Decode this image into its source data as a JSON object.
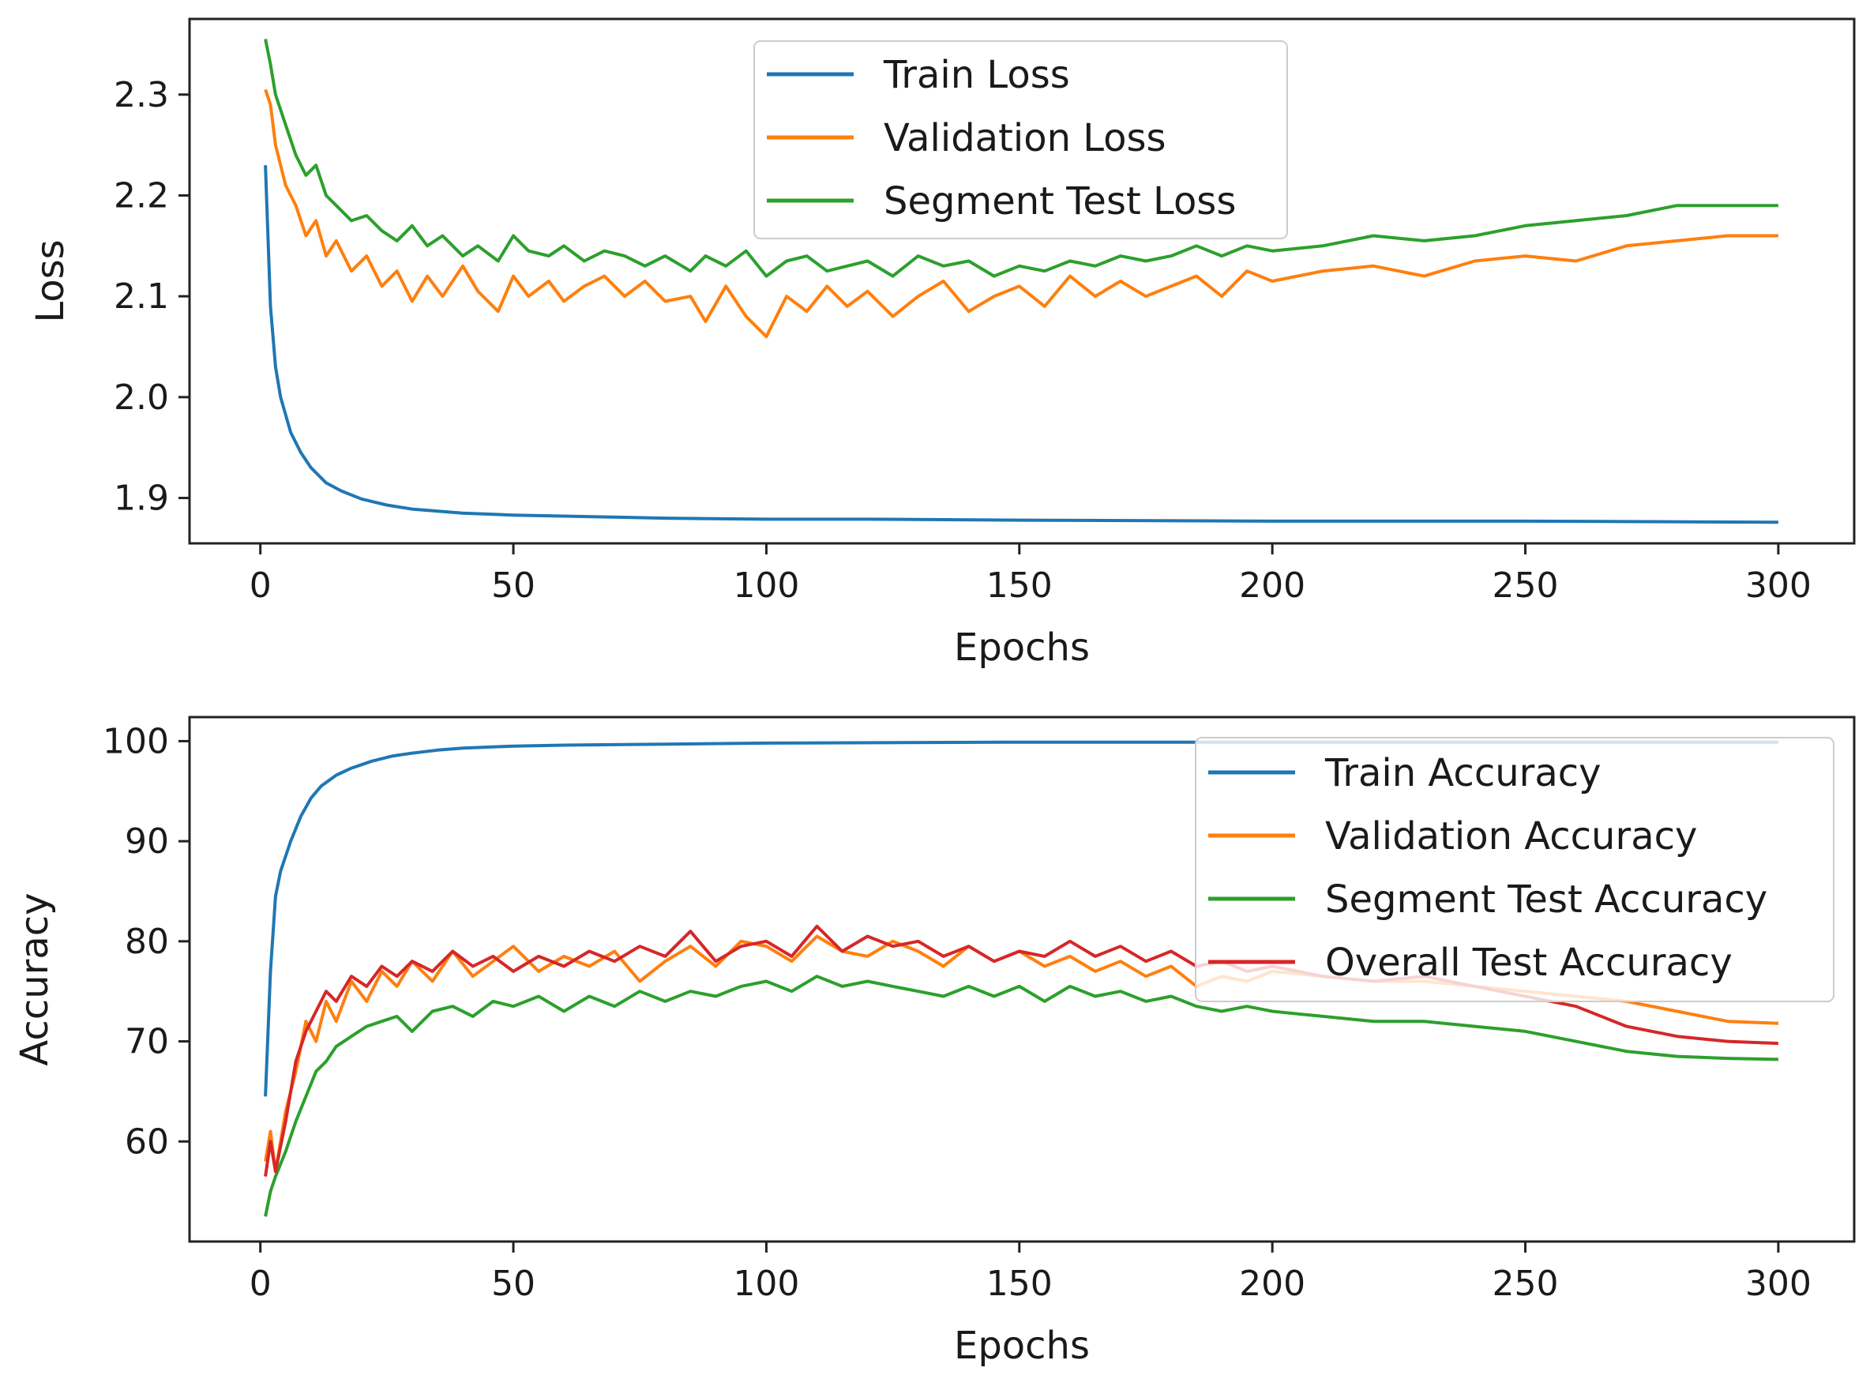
{
  "chart_data": [
    {
      "type": "line",
      "title": "",
      "xlabel": "Epochs",
      "ylabel": "Loss",
      "xlim": [
        -14,
        315
      ],
      "ylim": [
        1.855,
        2.375
      ],
      "xticks": [
        0,
        50,
        100,
        150,
        200,
        250,
        300
      ],
      "xtick_labels": [
        "0",
        "50",
        "100",
        "150",
        "200",
        "250",
        "300"
      ],
      "yticks": [
        1.9,
        2.0,
        2.1,
        2.2,
        2.3
      ],
      "ytick_labels": [
        "1.9",
        "2.0",
        "2.1",
        "2.2",
        "2.3"
      ],
      "legend_position": "upper-center",
      "series": [
        {
          "name": "Train Loss",
          "color": "#1f77b4",
          "x": [
            1,
            2,
            3,
            4,
            6,
            8,
            10,
            13,
            16,
            20,
            25,
            30,
            40,
            50,
            60,
            70,
            80,
            100,
            120,
            150,
            200,
            250,
            300
          ],
          "values": [
            2.23,
            2.09,
            2.03,
            2.0,
            1.965,
            1.945,
            1.93,
            1.915,
            1.907,
            1.899,
            1.893,
            1.889,
            1.885,
            1.883,
            1.882,
            1.881,
            1.88,
            1.879,
            1.879,
            1.878,
            1.877,
            1.877,
            1.876
          ]
        },
        {
          "name": "Validation Loss",
          "color": "#ff7f0e",
          "x": [
            1,
            2,
            3,
            5,
            7,
            9,
            11,
            13,
            15,
            18,
            21,
            24,
            27,
            30,
            33,
            36,
            40,
            43,
            47,
            50,
            53,
            57,
            60,
            64,
            68,
            72,
            76,
            80,
            85,
            88,
            92,
            96,
            100,
            104,
            108,
            112,
            116,
            120,
            125,
            130,
            135,
            140,
            145,
            150,
            155,
            160,
            165,
            170,
            175,
            180,
            185,
            190,
            195,
            200,
            210,
            220,
            230,
            240,
            250,
            260,
            270,
            280,
            290,
            300
          ],
          "values": [
            2.305,
            2.29,
            2.25,
            2.21,
            2.19,
            2.16,
            2.175,
            2.14,
            2.155,
            2.125,
            2.14,
            2.11,
            2.125,
            2.095,
            2.12,
            2.1,
            2.13,
            2.105,
            2.085,
            2.12,
            2.1,
            2.115,
            2.095,
            2.11,
            2.12,
            2.1,
            2.115,
            2.095,
            2.1,
            2.075,
            2.11,
            2.08,
            2.06,
            2.1,
            2.085,
            2.11,
            2.09,
            2.105,
            2.08,
            2.1,
            2.115,
            2.085,
            2.1,
            2.11,
            2.09,
            2.12,
            2.1,
            2.115,
            2.1,
            2.11,
            2.12,
            2.1,
            2.125,
            2.115,
            2.125,
            2.13,
            2.12,
            2.135,
            2.14,
            2.135,
            2.15,
            2.155,
            2.16,
            2.16
          ]
        },
        {
          "name": "Segment Test Loss",
          "color": "#2ca02c",
          "x": [
            1,
            2,
            3,
            5,
            7,
            9,
            11,
            13,
            15,
            18,
            21,
            24,
            27,
            30,
            33,
            36,
            40,
            43,
            47,
            50,
            53,
            57,
            60,
            64,
            68,
            72,
            76,
            80,
            85,
            88,
            92,
            96,
            100,
            104,
            108,
            112,
            116,
            120,
            125,
            130,
            135,
            140,
            145,
            150,
            155,
            160,
            165,
            170,
            175,
            180,
            185,
            190,
            195,
            200,
            210,
            220,
            230,
            240,
            250,
            260,
            270,
            280,
            290,
            300
          ],
          "values": [
            2.355,
            2.33,
            2.3,
            2.27,
            2.24,
            2.22,
            2.23,
            2.2,
            2.19,
            2.175,
            2.18,
            2.165,
            2.155,
            2.17,
            2.15,
            2.16,
            2.14,
            2.15,
            2.135,
            2.16,
            2.145,
            2.14,
            2.15,
            2.135,
            2.145,
            2.14,
            2.13,
            2.14,
            2.125,
            2.14,
            2.13,
            2.145,
            2.12,
            2.135,
            2.14,
            2.125,
            2.13,
            2.135,
            2.12,
            2.14,
            2.13,
            2.135,
            2.12,
            2.13,
            2.125,
            2.135,
            2.13,
            2.14,
            2.135,
            2.14,
            2.15,
            2.14,
            2.15,
            2.145,
            2.15,
            2.16,
            2.155,
            2.16,
            2.17,
            2.175,
            2.18,
            2.19,
            2.19,
            2.19
          ]
        }
      ]
    },
    {
      "type": "line",
      "title": "",
      "xlabel": "Epochs",
      "ylabel": "Accuracy",
      "xlim": [
        -14,
        315
      ],
      "ylim": [
        50,
        102.4
      ],
      "xticks": [
        0,
        50,
        100,
        150,
        200,
        250,
        300
      ],
      "xtick_labels": [
        "0",
        "50",
        "100",
        "150",
        "200",
        "250",
        "300"
      ],
      "yticks": [
        60,
        70,
        80,
        90,
        100
      ],
      "ytick_labels": [
        "60",
        "70",
        "80",
        "90",
        "100"
      ],
      "legend_position": "upper-right",
      "series": [
        {
          "name": "Train Accuracy",
          "color": "#1f77b4",
          "x": [
            1,
            2,
            3,
            4,
            6,
            8,
            10,
            12,
            15,
            18,
            22,
            26,
            30,
            35,
            40,
            50,
            60,
            80,
            100,
            150,
            200,
            250,
            300
          ],
          "values": [
            64.5,
            77.0,
            84.5,
            87.0,
            90.0,
            92.5,
            94.3,
            95.5,
            96.6,
            97.3,
            98.0,
            98.5,
            98.8,
            99.1,
            99.3,
            99.5,
            99.6,
            99.7,
            99.8,
            99.9,
            99.9,
            99.9,
            99.9
          ]
        },
        {
          "name": "Validation Accuracy",
          "color": "#ff7f0e",
          "x": [
            1,
            2,
            3,
            5,
            7,
            9,
            11,
            13,
            15,
            18,
            21,
            24,
            27,
            30,
            34,
            38,
            42,
            46,
            50,
            55,
            60,
            65,
            70,
            75,
            80,
            85,
            90,
            95,
            100,
            105,
            110,
            115,
            120,
            125,
            130,
            135,
            140,
            145,
            150,
            155,
            160,
            165,
            170,
            175,
            180,
            185,
            190,
            195,
            200,
            210,
            220,
            230,
            240,
            250,
            260,
            270,
            280,
            290,
            300
          ],
          "values": [
            58.0,
            61.0,
            57.0,
            63.0,
            67.0,
            72.0,
            70.0,
            74.0,
            72.0,
            76.0,
            74.0,
            77.0,
            75.5,
            78.0,
            76.0,
            79.0,
            76.5,
            78.0,
            79.5,
            77.0,
            78.5,
            77.5,
            79.0,
            76.0,
            78.0,
            79.5,
            77.5,
            80.0,
            79.5,
            78.0,
            80.5,
            79.0,
            78.5,
            80.0,
            79.0,
            77.5,
            79.5,
            78.0,
            79.0,
            77.5,
            78.5,
            77.0,
            78.0,
            76.5,
            77.5,
            75.5,
            76.5,
            76.0,
            77.0,
            76.5,
            76.0,
            76.0,
            75.5,
            75.0,
            74.5,
            74.0,
            73.0,
            72.0,
            71.8
          ]
        },
        {
          "name": "Segment Test Accuracy",
          "color": "#2ca02c",
          "x": [
            1,
            2,
            3,
            5,
            7,
            9,
            11,
            13,
            15,
            18,
            21,
            24,
            27,
            30,
            34,
            38,
            42,
            46,
            50,
            55,
            60,
            65,
            70,
            75,
            80,
            85,
            90,
            95,
            100,
            105,
            110,
            115,
            120,
            125,
            130,
            135,
            140,
            145,
            150,
            155,
            160,
            165,
            170,
            175,
            180,
            185,
            190,
            195,
            200,
            210,
            220,
            230,
            240,
            250,
            260,
            270,
            280,
            290,
            300
          ],
          "values": [
            52.5,
            55.0,
            56.5,
            59.0,
            62.0,
            64.5,
            67.0,
            68.0,
            69.5,
            70.5,
            71.5,
            72.0,
            72.5,
            71.0,
            73.0,
            73.5,
            72.5,
            74.0,
            73.5,
            74.5,
            73.0,
            74.5,
            73.5,
            75.0,
            74.0,
            75.0,
            74.5,
            75.5,
            76.0,
            75.0,
            76.5,
            75.5,
            76.0,
            75.5,
            75.0,
            74.5,
            75.5,
            74.5,
            75.5,
            74.0,
            75.5,
            74.5,
            75.0,
            74.0,
            74.5,
            73.5,
            73.0,
            73.5,
            73.0,
            72.5,
            72.0,
            72.0,
            71.5,
            71.0,
            70.0,
            69.0,
            68.5,
            68.3,
            68.2
          ]
        },
        {
          "name": "Overall Test Accuracy",
          "color": "#d62728",
          "x": [
            1,
            2,
            3,
            5,
            7,
            9,
            11,
            13,
            15,
            18,
            21,
            24,
            27,
            30,
            34,
            38,
            42,
            46,
            50,
            55,
            60,
            65,
            70,
            75,
            80,
            85,
            90,
            95,
            100,
            105,
            110,
            115,
            120,
            125,
            130,
            135,
            140,
            145,
            150,
            155,
            160,
            165,
            170,
            175,
            180,
            185,
            190,
            195,
            200,
            210,
            220,
            230,
            240,
            250,
            260,
            270,
            280,
            290,
            300
          ],
          "values": [
            56.5,
            60.0,
            57.0,
            62.0,
            68.0,
            71.0,
            73.0,
            75.0,
            74.0,
            76.5,
            75.5,
            77.5,
            76.5,
            78.0,
            77.0,
            79.0,
            77.5,
            78.5,
            77.0,
            78.5,
            77.5,
            79.0,
            78.0,
            79.5,
            78.5,
            81.0,
            78.0,
            79.5,
            80.0,
            78.5,
            81.5,
            79.0,
            80.5,
            79.5,
            80.0,
            78.5,
            79.5,
            78.0,
            79.0,
            78.5,
            80.0,
            78.5,
            79.5,
            78.0,
            79.0,
            77.5,
            78.0,
            77.0,
            77.5,
            76.5,
            76.0,
            76.5,
            75.5,
            74.5,
            73.5,
            71.5,
            70.5,
            70.0,
            69.8
          ]
        }
      ]
    }
  ]
}
